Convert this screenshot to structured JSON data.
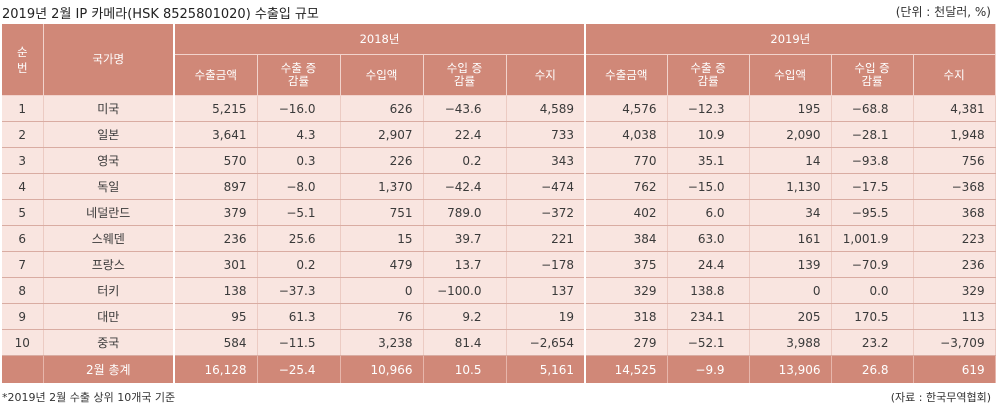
{
  "title": "2019년 2월 IP 카메라(HSK 8525801020) 수출입 규모",
  "unit": "(단위 : 천달러, %)",
  "header": {
    "rank": "순번",
    "country": "국가명",
    "year1": "2018년",
    "year2": "2019년",
    "columns": [
      "수출금액",
      "수출 증감률",
      "수입액",
      "수입 증감률",
      "수지"
    ]
  },
  "rows": [
    {
      "rank": "1",
      "country": "미국",
      "y2018": [
        "5,215",
        "−16.0",
        "626",
        "−43.6",
        "4,589"
      ],
      "y2019": [
        "4,576",
        "−12.3",
        "195",
        "−68.8",
        "4,381"
      ]
    },
    {
      "rank": "2",
      "country": "일본",
      "y2018": [
        "3,641",
        "4.3",
        "2,907",
        "22.4",
        "733"
      ],
      "y2019": [
        "4,038",
        "10.9",
        "2,090",
        "−28.1",
        "1,948"
      ]
    },
    {
      "rank": "3",
      "country": "영국",
      "y2018": [
        "570",
        "0.3",
        "226",
        "0.2",
        "343"
      ],
      "y2019": [
        "770",
        "35.1",
        "14",
        "−93.8",
        "756"
      ]
    },
    {
      "rank": "4",
      "country": "독일",
      "y2018": [
        "897",
        "−8.0",
        "1,370",
        "−42.4",
        "−474"
      ],
      "y2019": [
        "762",
        "−15.0",
        "1,130",
        "−17.5",
        "−368"
      ]
    },
    {
      "rank": "5",
      "country": "네덜란드",
      "y2018": [
        "379",
        "−5.1",
        "751",
        "789.0",
        "−372"
      ],
      "y2019": [
        "402",
        "6.0",
        "34",
        "−95.5",
        "368"
      ]
    },
    {
      "rank": "6",
      "country": "스웨덴",
      "y2018": [
        "236",
        "25.6",
        "15",
        "39.7",
        "221"
      ],
      "y2019": [
        "384",
        "63.0",
        "161",
        "1,001.9",
        "223"
      ]
    },
    {
      "rank": "7",
      "country": "프랑스",
      "y2018": [
        "301",
        "0.2",
        "479",
        "13.7",
        "−178"
      ],
      "y2019": [
        "375",
        "24.4",
        "139",
        "−70.9",
        "236"
      ]
    },
    {
      "rank": "8",
      "country": "터키",
      "y2018": [
        "138",
        "−37.3",
        "0",
        "−100.0",
        "137"
      ],
      "y2019": [
        "329",
        "138.8",
        "0",
        "0.0",
        "329"
      ]
    },
    {
      "rank": "9",
      "country": "대만",
      "y2018": [
        "95",
        "61.3",
        "76",
        "9.2",
        "19"
      ],
      "y2019": [
        "318",
        "234.1",
        "205",
        "170.5",
        "113"
      ]
    },
    {
      "rank": "10",
      "country": "중국",
      "y2018": [
        "584",
        "−11.5",
        "3,238",
        "81.4",
        "−2,654"
      ],
      "y2019": [
        "279",
        "−52.1",
        "3,988",
        "23.2",
        "−3,709"
      ]
    }
  ],
  "total": {
    "label": "2월 총계",
    "y2018": [
      "16,128",
      "−25.4",
      "10,966",
      "10.5",
      "5,161"
    ],
    "y2019": [
      "14,525",
      "−9.9",
      "13,906",
      "26.8",
      "619"
    ]
  },
  "footnote": "*2019년 2월 수출 상위 10개국 기준",
  "source": "(자료 : 한국무역협회)"
}
